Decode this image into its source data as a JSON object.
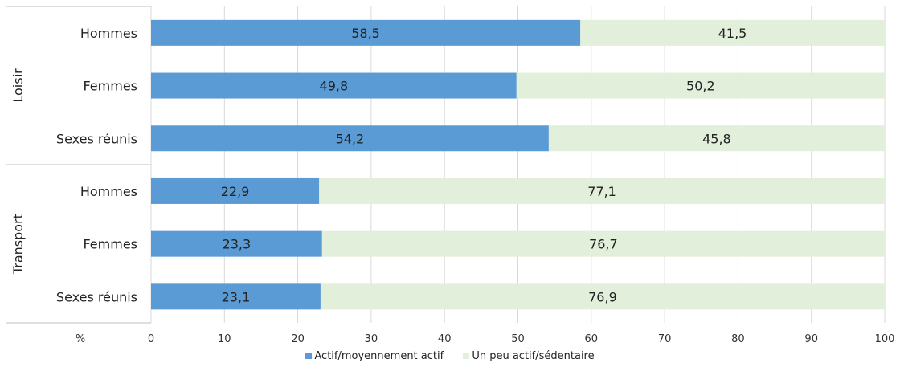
{
  "chart_data": {
    "type": "bar",
    "orientation": "horizontal",
    "stacked": true,
    "unit_label": "%",
    "groups": [
      {
        "label": "Loisir",
        "categories": [
          "Hommes",
          "Femmes",
          "Sexes réunis"
        ]
      },
      {
        "label": "Transport",
        "categories": [
          "Hommes",
          "Femmes",
          "Sexes réunis"
        ]
      }
    ],
    "series": [
      {
        "name": "Actif/moyennement actif",
        "color": "#5b9bd5",
        "values": [
          "58,5",
          "49,8",
          "54,2",
          "22,9",
          "23,3",
          "23,1"
        ]
      },
      {
        "name": "Un peu actif/sédentaire",
        "color": "#e2efda",
        "values": [
          "41,5",
          "50,2",
          "45,8",
          "77,1",
          "76,7",
          "76,9"
        ]
      }
    ],
    "xlim": [
      0,
      100
    ],
    "xticks": [
      "0",
      "10",
      "20",
      "30",
      "40",
      "50",
      "60",
      "70",
      "80",
      "90",
      "100"
    ],
    "grid": true,
    "legend_position": "bottom"
  }
}
